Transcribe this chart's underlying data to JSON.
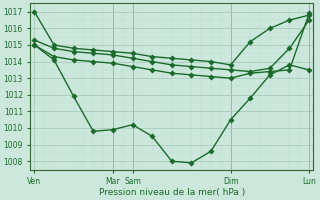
{
  "xlabel": "Pression niveau de la mer( hPa )",
  "bg_color": "#cce8dc",
  "grid_major_color": "#aaccbb",
  "grid_minor_color": "#bbddd0",
  "line_color": "#1a6b2a",
  "spine_color": "#336633",
  "ylim": [
    1007.5,
    1017.5
  ],
  "yticks": [
    1008,
    1009,
    1010,
    1011,
    1012,
    1013,
    1014,
    1015,
    1016,
    1017
  ],
  "xlim": [
    -0.2,
    14.2
  ],
  "day_ticks": [
    0,
    4,
    5,
    10,
    14
  ],
  "day_labels": [
    "Ven",
    "Mar",
    "Sam",
    "Dim",
    "Lun"
  ],
  "vline_x": [
    4,
    5,
    10,
    14
  ],
  "series1_x": [
    0,
    1,
    2,
    3,
    4,
    5,
    6,
    7,
    8,
    9,
    10,
    11,
    12,
    13,
    14
  ],
  "series1_y": [
    1017.0,
    1015.0,
    1014.8,
    1014.7,
    1014.6,
    1014.5,
    1014.3,
    1014.2,
    1014.1,
    1014.0,
    1013.8,
    1015.2,
    1016.0,
    1016.5,
    1016.8
  ],
  "series2_x": [
    0,
    1,
    2,
    3,
    4,
    5,
    6,
    7,
    8,
    9,
    10,
    11,
    12,
    13,
    14
  ],
  "series2_y": [
    1015.3,
    1014.8,
    1014.6,
    1014.5,
    1014.4,
    1014.2,
    1014.0,
    1013.8,
    1013.7,
    1013.6,
    1013.5,
    1013.4,
    1013.6,
    1014.8,
    1016.5
  ],
  "series3_x": [
    0,
    1,
    2,
    3,
    4,
    5,
    6,
    7,
    8,
    9,
    10,
    11,
    12,
    13,
    14
  ],
  "series3_y": [
    1015.0,
    1014.3,
    1014.1,
    1014.0,
    1013.9,
    1013.7,
    1013.5,
    1013.3,
    1013.2,
    1013.1,
    1013.0,
    1013.3,
    1013.4,
    1013.5,
    1016.9
  ],
  "series4_x": [
    0,
    1,
    2,
    3,
    4,
    5,
    6,
    7,
    8,
    9,
    10,
    11,
    12,
    13,
    14
  ],
  "series4_y": [
    1015.0,
    1014.1,
    1011.9,
    1009.8,
    1009.9,
    1010.2,
    1009.5,
    1008.0,
    1007.9,
    1008.6,
    1010.5,
    1011.8,
    1013.2,
    1013.8,
    1013.5
  ],
  "marker_size": 2.8,
  "linewidth": 1.0
}
